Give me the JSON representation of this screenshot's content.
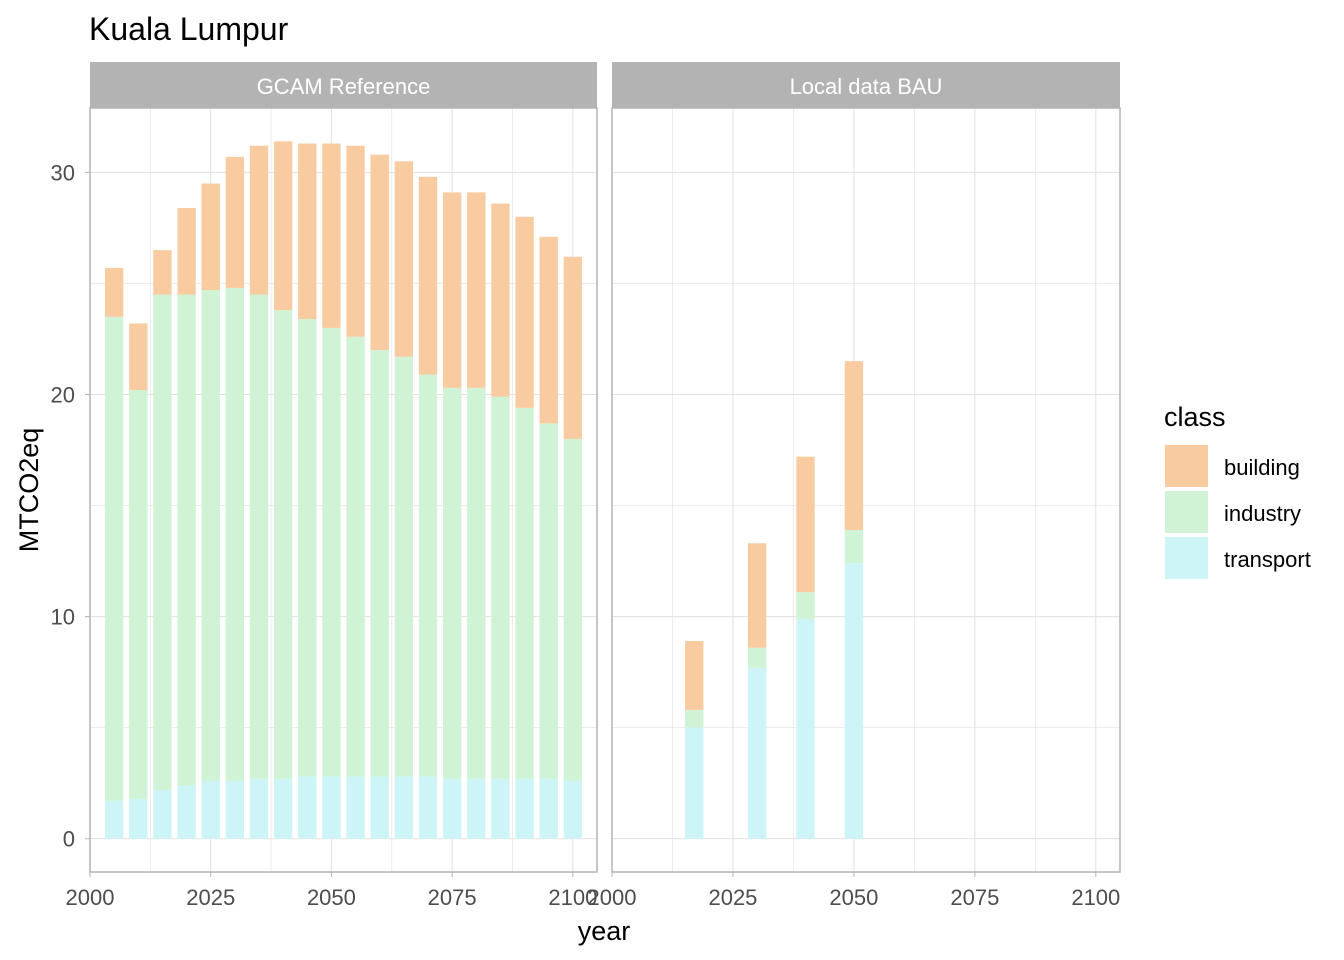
{
  "chart_data": {
    "type": "bar",
    "stacked": true,
    "title": "Kuala Lumpur",
    "xlabel": "year",
    "ylabel": "MTCO2eq",
    "xlim": [
      2000,
      2105
    ],
    "ylim": [
      -1.5,
      32.9
    ],
    "xticks": [
      2000,
      2025,
      2050,
      2075,
      2100
    ],
    "yticks": [
      0,
      10,
      20,
      30
    ],
    "grid": true,
    "legend": {
      "title": "class",
      "position": "right",
      "entries": [
        "building",
        "industry",
        "transport"
      ]
    },
    "colors": {
      "building": "#f9cba0",
      "industry": "#cff3d4",
      "transport": "#cdf4f6",
      "strip": "#b3b3b3",
      "panel_border": "#b3b3b3",
      "grid": "#e0e0e0"
    },
    "panels": [
      {
        "name": "GCAM Reference",
        "x": [
          2005,
          2010,
          2015,
          2020,
          2025,
          2030,
          2035,
          2040,
          2045,
          2050,
          2055,
          2060,
          2065,
          2070,
          2075,
          2080,
          2085,
          2090,
          2095,
          2100
        ],
        "series": [
          {
            "name": "transport",
            "values": [
              1.7,
              1.8,
              2.2,
              2.4,
              2.6,
              2.6,
              2.7,
              2.7,
              2.8,
              2.8,
              2.8,
              2.8,
              2.8,
              2.8,
              2.7,
              2.7,
              2.7,
              2.7,
              2.7,
              2.6
            ]
          },
          {
            "name": "industry",
            "values": [
              21.8,
              18.4,
              22.3,
              22.1,
              22.1,
              22.2,
              21.8,
              21.1,
              20.6,
              20.2,
              19.8,
              19.2,
              18.9,
              18.1,
              17.6,
              17.6,
              17.2,
              16.7,
              16.0,
              15.4
            ]
          },
          {
            "name": "building",
            "values": [
              2.2,
              3.0,
              2.0,
              3.9,
              4.8,
              5.9,
              6.7,
              7.6,
              7.9,
              8.3,
              8.6,
              8.8,
              8.8,
              8.9,
              8.8,
              8.8,
              8.7,
              8.6,
              8.4,
              8.2
            ]
          }
        ]
      },
      {
        "name": "Local data BAU",
        "x": [
          2017,
          2030,
          2040,
          2050
        ],
        "series": [
          {
            "name": "transport",
            "values": [
              5.0,
              7.7,
              9.9,
              12.4
            ]
          },
          {
            "name": "industry",
            "values": [
              0.8,
              0.9,
              1.2,
              1.5
            ]
          },
          {
            "name": "building",
            "values": [
              3.1,
              4.7,
              6.1,
              7.6
            ]
          }
        ]
      }
    ]
  }
}
